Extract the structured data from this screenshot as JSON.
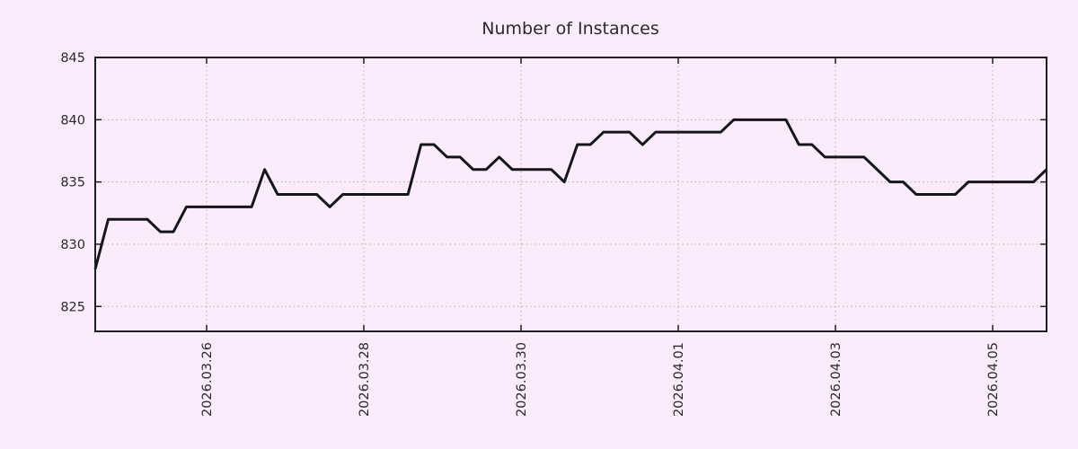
{
  "chart_data": {
    "type": "line",
    "title": "Number of Instances",
    "legend": "none",
    "grid": "dotted",
    "series": [
      {
        "name": "instances",
        "values": [
          828,
          832,
          832,
          832,
          832,
          831,
          831,
          833,
          833,
          833,
          833,
          833,
          833,
          836,
          834,
          834,
          834,
          834,
          833,
          834,
          834,
          834,
          834,
          834,
          834,
          838,
          838,
          837,
          837,
          836,
          836,
          837,
          836,
          836,
          836,
          836,
          835,
          838,
          838,
          839,
          839,
          839,
          838,
          839,
          839,
          839,
          839,
          839,
          839,
          840,
          840,
          840,
          840,
          840,
          838,
          838,
          837,
          837,
          837,
          837,
          836,
          835,
          835,
          834,
          834,
          834,
          834,
          835,
          835,
          835,
          835,
          835,
          835,
          836
        ]
      }
    ],
    "x": {
      "reference_tick_label": "2026.03.26",
      "tick_labels": [
        "2026.03.26",
        "2026.03.28",
        "2026.03.30",
        "2026.04.01",
        "2026.04.03",
        "2026.04.05"
      ],
      "tick_day_offsets": [
        0,
        2,
        4,
        6,
        8,
        10
      ],
      "xlim_day_offsets": [
        -1.417,
        10.686
      ],
      "first_point_day_offset": -1.417,
      "point_step_days": 0.16579
    },
    "y": {
      "tick_labels": [
        "825",
        "830",
        "835",
        "840",
        "845"
      ],
      "tick_values": [
        825,
        830,
        835,
        840,
        845
      ],
      "ylim": [
        823,
        845
      ]
    },
    "style": {
      "background": "#fbecfb",
      "line_color": "#15151d",
      "line_width": 3,
      "grid_color": "#b5aab5",
      "axis_color": "#1e1d24",
      "text_color": "#2a2930",
      "title_font_size": 19,
      "tick_font_size": 14.5
    }
  }
}
